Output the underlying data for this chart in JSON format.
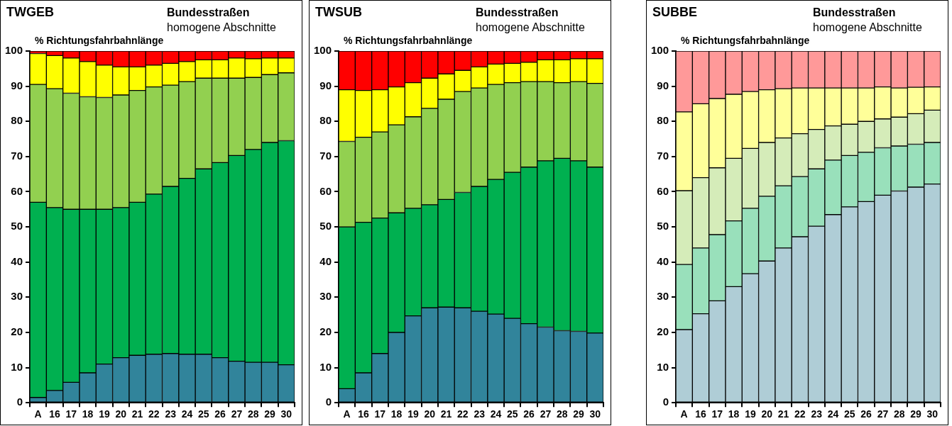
{
  "chart_data": [
    {
      "type": "bar",
      "title": "TWGEB",
      "subtitle": "Bundesstraßen",
      "annotations": [
        "homogene Abschnitte"
      ],
      "ylabel": "% Richtungsfahrbahnlänge",
      "stacked": true,
      "grid": false,
      "legend": false,
      "categories": [
        "A",
        "16",
        "17",
        "18",
        "19",
        "20",
        "21",
        "22",
        "23",
        "24",
        "25",
        "26",
        "27",
        "28",
        "29",
        "30"
      ],
      "ylim": [
        0,
        100
      ],
      "yticks": [
        0,
        10,
        20,
        30,
        40,
        50,
        60,
        70,
        80,
        90,
        100
      ],
      "series": [
        {
          "color": "#31849b",
          "values": [
            1.5,
            3.5,
            5.8,
            8.5,
            11,
            12.8,
            13.5,
            13.8,
            14,
            13.8,
            13.8,
            12.8,
            11.8,
            11.5,
            11.5,
            10.8
          ]
        },
        {
          "color": "#00b050",
          "values": [
            55.5,
            52,
            49.2,
            46.5,
            44,
            42.7,
            43.5,
            45.5,
            47.5,
            50,
            52.7,
            55.5,
            58.5,
            60.5,
            62.5,
            63.7
          ]
        },
        {
          "color": "#92d050",
          "values": [
            33.5,
            33.8,
            33,
            32,
            31.8,
            32,
            31.8,
            30.5,
            28.8,
            27.5,
            25.8,
            24,
            22,
            20.5,
            19.3,
            19.3
          ]
        },
        {
          "color": "#ffff00",
          "values": [
            8.8,
            9.4,
            10,
            10,
            9.2,
            8,
            6.7,
            6.2,
            6.2,
            5.7,
            5.2,
            5.2,
            5.7,
            5.3,
            4.7,
            4.2
          ]
        },
        {
          "color": "#ff0000",
          "values": [
            0.7,
            1.3,
            2,
            3,
            4,
            4.5,
            4.5,
            4,
            3.5,
            3,
            2.5,
            2.5,
            2,
            2.2,
            2,
            2
          ]
        }
      ]
    },
    {
      "type": "bar",
      "title": "TWSUB",
      "subtitle": "Bundesstraßen",
      "annotations": [
        "homogene Abschnitte"
      ],
      "ylabel": "% Richtungsfahrbahnlänge",
      "stacked": true,
      "grid": false,
      "legend": false,
      "categories": [
        "A",
        "16",
        "17",
        "18",
        "19",
        "20",
        "21",
        "22",
        "23",
        "24",
        "25",
        "26",
        "27",
        "28",
        "29",
        "30"
      ],
      "ylim": [
        0,
        100
      ],
      "yticks": [
        0,
        10,
        20,
        30,
        40,
        50,
        60,
        70,
        80,
        90,
        100
      ],
      "series": [
        {
          "color": "#31849b",
          "values": [
            4,
            8.5,
            14,
            20,
            24.7,
            27,
            27.2,
            27,
            26,
            25.2,
            24,
            22.5,
            21.5,
            20.5,
            20.3,
            19.8
          ]
        },
        {
          "color": "#00b050",
          "values": [
            46,
            42.8,
            38.5,
            34,
            30.6,
            29.3,
            30.6,
            32.8,
            35.5,
            38.3,
            41.5,
            44.5,
            47.3,
            49,
            48.5,
            47.2
          ]
        },
        {
          "color": "#92d050",
          "values": [
            24.3,
            24.2,
            24.5,
            25,
            26,
            27.4,
            28.5,
            28.7,
            28,
            27,
            25.5,
            24.3,
            22.5,
            21.5,
            22.5,
            23.8
          ]
        },
        {
          "color": "#ffff00",
          "values": [
            14.7,
            13.3,
            12,
            10.8,
            9.7,
            8.6,
            7.2,
            6,
            6,
            5.8,
            5.5,
            5.5,
            6.2,
            6.5,
            6.5,
            7
          ]
        },
        {
          "color": "#ff0000",
          "values": [
            11,
            11.2,
            11,
            10.2,
            9,
            7.7,
            6.5,
            5.5,
            4.5,
            3.7,
            3.5,
            3.2,
            2.5,
            2.5,
            2.2,
            2.2
          ]
        }
      ]
    },
    {
      "type": "bar",
      "title": "SUBBE",
      "subtitle": "Bundesstraßen",
      "annotations": [
        "homogene Abschnitte"
      ],
      "ylabel": "% Richtungsfahrbahnlänge",
      "stacked": true,
      "grid": false,
      "legend": false,
      "categories": [
        "A",
        "16",
        "17",
        "18",
        "19",
        "20",
        "21",
        "22",
        "23",
        "24",
        "25",
        "26",
        "27",
        "28",
        "29",
        "30"
      ],
      "ylim": [
        0,
        100
      ],
      "yticks": [
        0,
        10,
        20,
        30,
        40,
        50,
        60,
        70,
        80,
        90,
        100
      ],
      "series": [
        {
          "color": "#afcdd6",
          "values": [
            20.8,
            25.3,
            29,
            33,
            36.7,
            40.3,
            44,
            47.2,
            50.2,
            53.5,
            55.7,
            57.2,
            59,
            60.2,
            61.3,
            62.2
          ]
        },
        {
          "color": "#99e0bb",
          "values": [
            18.5,
            18.7,
            18.8,
            18.7,
            18.6,
            18.4,
            17.7,
            17.1,
            16.3,
            15.5,
            14.6,
            14,
            13.5,
            12.8,
            12.2,
            11.8
          ]
        },
        {
          "color": "#d5ecb9",
          "values": [
            21,
            20,
            19,
            17.8,
            17,
            15.3,
            13.6,
            12.2,
            11.2,
            9.7,
            8.9,
            8.8,
            8.2,
            8.2,
            8.7,
            9.2
          ]
        },
        {
          "color": "#ffff99",
          "values": [
            22.4,
            21,
            19.7,
            18.2,
            16.2,
            15,
            14,
            13,
            11.8,
            10.8,
            10.3,
            9.5,
            9.1,
            8.3,
            7.5,
            6.6
          ]
        },
        {
          "color": "#ff9999",
          "values": [
            17.3,
            15,
            13.5,
            12.3,
            11.5,
            11,
            10.7,
            10.5,
            10.5,
            10.5,
            10.5,
            10.5,
            10.2,
            10.5,
            10.3,
            10.2
          ]
        }
      ]
    }
  ]
}
